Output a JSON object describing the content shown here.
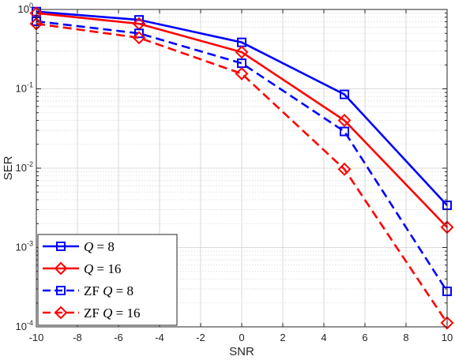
{
  "chart_data": {
    "type": "line",
    "xlabel": "SNR",
    "ylabel": "SER",
    "x": [
      -10,
      -5,
      0,
      5,
      10
    ],
    "xlim": [
      -10,
      10
    ],
    "xticks": [
      -10,
      -8,
      -6,
      -4,
      -2,
      0,
      2,
      4,
      6,
      8,
      10
    ],
    "y_scale": "log",
    "ylim": [
      0.0001,
      1
    ],
    "y_decades": [
      -4,
      -3,
      -2,
      -1,
      0
    ],
    "ytick_base": "10",
    "grid": true,
    "legend_position": "bottom-left",
    "series": [
      {
        "name": "Q = 8",
        "legend_prefix": "",
        "legend_var": "Q",
        "legend_eq": " = 8",
        "color": "#0000ff",
        "marker": "square",
        "dash": "solid",
        "values": [
          0.94,
          0.74,
          0.385,
          0.085,
          0.0034
        ]
      },
      {
        "name": "Q = 16",
        "legend_prefix": "",
        "legend_var": "Q",
        "legend_eq": " = 16",
        "color": "#ff0000",
        "marker": "diamond",
        "dash": "solid",
        "values": [
          0.9,
          0.66,
          0.29,
          0.04,
          0.0018
        ]
      },
      {
        "name": "ZF Q = 8",
        "legend_prefix": "ZF ",
        "legend_var": "Q",
        "legend_eq": " = 8",
        "color": "#0000ff",
        "marker": "square",
        "dash": "dashed",
        "values": [
          0.71,
          0.5,
          0.21,
          0.029,
          0.00028
        ]
      },
      {
        "name": "ZF Q = 16",
        "legend_prefix": "ZF ",
        "legend_var": "Q",
        "legend_eq": " = 16",
        "color": "#ff0000",
        "marker": "diamond",
        "dash": "dashed",
        "values": [
          0.66,
          0.44,
          0.155,
          0.0097,
          0.000112
        ]
      }
    ]
  }
}
